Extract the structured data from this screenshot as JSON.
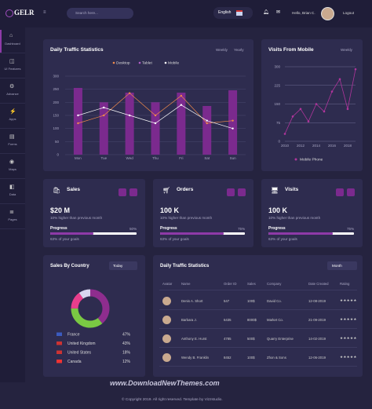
{
  "header": {
    "logo": "GELR",
    "search_placeholder": "Search here...",
    "language": "English",
    "greeting": "Hello, Brian C."
  },
  "sidebar": [
    "Dashboard",
    "UI Features",
    "Advance",
    "Apps",
    "Forms",
    "Maps",
    "Data",
    "Pages"
  ],
  "traffic_chart": {
    "type": "bar-line",
    "title": "Daily Traffic Statistics",
    "tabs": [
      "Weekly",
      "Yearly"
    ],
    "categories": [
      "Mon",
      "Tue",
      "Wed",
      "Thu",
      "Fri",
      "Sat",
      "Sun"
    ],
    "ylim": [
      0,
      300
    ],
    "yticks": [
      0,
      50,
      100,
      150,
      200,
      250,
      300
    ],
    "series": [
      {
        "name": "Desktop",
        "color": "#f08a4b",
        "values": [
          120,
          150,
          235,
          150,
          225,
          120,
          130
        ]
      },
      {
        "name": "Tablet",
        "color": "#7b2a8e",
        "values": [
          255,
          200,
          237,
          200,
          237,
          186,
          246
        ]
      },
      {
        "name": "Mobile",
        "color": "#ffffff",
        "values": [
          150,
          180,
          150,
          120,
          190,
          130,
          100
        ]
      }
    ]
  },
  "mobile_chart": {
    "type": "line",
    "title": "Visits From Mobile",
    "tab": "Weekly",
    "x": [
      2010,
      2011,
      2012,
      2013,
      2014,
      2015,
      2016,
      2017,
      2018,
      2019
    ],
    "xlim": [
      2010,
      2019
    ],
    "xticks": [
      2010,
      2012,
      2014,
      2016,
      2018
    ],
    "ylim": [
      0,
      300
    ],
    "yticks": [
      0,
      75,
      150,
      225,
      300
    ],
    "series": [
      {
        "name": "Mobile Phone",
        "color": "#b0359c",
        "values": [
          30,
          100,
          130,
          80,
          150,
          120,
          200,
          250,
          130,
          290
        ]
      }
    ]
  },
  "stats": [
    {
      "title": "Sales",
      "value": "$20 M",
      "note": "10% higher than previous month",
      "progress_title": "Progress",
      "progress": 50,
      "progress_label": "50%",
      "goal": "63% of your goals"
    },
    {
      "title": "Orders",
      "value": "100 K",
      "note": "10% higher than previous month",
      "progress_title": "Progress",
      "progress": 75,
      "progress_label": "75%",
      "goal": "63% of your goals"
    },
    {
      "title": "Visits",
      "value": "100 K",
      "note": "10% higher than previous month",
      "progress_title": "Progress",
      "progress": 75,
      "progress_label": "75%",
      "goal": "63% of your goals"
    }
  ],
  "country_chart": {
    "type": "donut",
    "title": "Sales By Country",
    "filter": "Today",
    "categories": [
      "France",
      "United Kingdom",
      "United States",
      "Canada"
    ],
    "values": [
      47,
      43,
      18,
      12
    ],
    "value_labels": [
      "47%",
      "43%",
      "18%",
      "12%"
    ],
    "colors": [
      "#8e2d8e",
      "#7ac943",
      "#e83e8c",
      "#d9d6ef"
    ]
  },
  "table": {
    "title": "Daily Traffic Statistics",
    "filter": "Month",
    "columns": [
      "Avatar",
      "Name",
      "Order ID",
      "Sales",
      "Company",
      "Date Created",
      "Rating"
    ],
    "rows": [
      [
        "Denis A. Short",
        "547",
        "100$",
        "David Co.",
        "12-08-2019"
      ],
      [
        "Barbara J.",
        "6435",
        "8000$",
        "Market Co.",
        "21-09-2019"
      ],
      [
        "Anthony E. Hurst",
        "4785",
        "500$",
        "Quarry Enterprise",
        "14-02-2019"
      ],
      [
        "Wendy B. Franklin",
        "8452",
        "100$",
        "Zhon & Sons",
        "12-06-2019"
      ]
    ]
  },
  "watermark": "www.DownloadNewThemes.com",
  "footer": "© Copyright 2019. All right reserved. Template by Vizzstudio."
}
